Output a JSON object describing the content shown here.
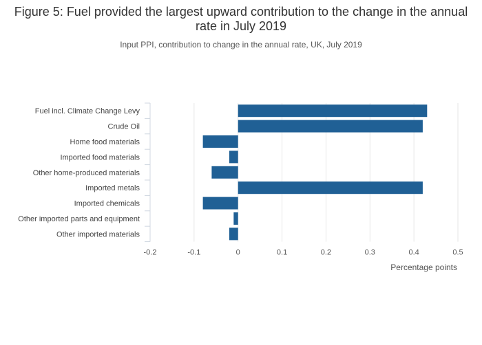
{
  "chart_data": {
    "type": "bar",
    "orientation": "horizontal",
    "title": "Figure 5: Fuel provided the largest upward contribution to the change in the annual rate in July 2019",
    "subtitle": "Input PPI, contribution to change in the annual rate, UK, July 2019",
    "xlabel": "Percentage points",
    "ylabel": "",
    "xlim": [
      -0.2,
      0.5
    ],
    "xticks": [
      "-0.2",
      "-0.1",
      "0",
      "0.1",
      "0.2",
      "0.3",
      "0.4",
      "0.5"
    ],
    "categories": [
      "Fuel incl. Climate Change Levy",
      "Crude Oil",
      "Home food materials",
      "Imported food materials",
      "Other home-produced materials",
      "Imported metals",
      "Imported chemicals",
      "Other imported parts and equipment",
      "Other imported materials"
    ],
    "values": [
      0.43,
      0.42,
      -0.08,
      -0.02,
      -0.06,
      0.42,
      -0.08,
      -0.01,
      -0.02
    ],
    "bar_color": "#206095",
    "grid": true
  }
}
